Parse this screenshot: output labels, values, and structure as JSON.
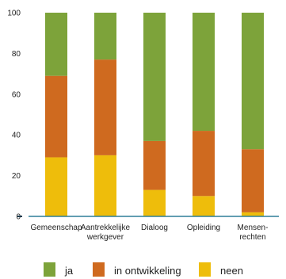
{
  "chart_data": {
    "type": "bar",
    "stacked": true,
    "categories": [
      [
        "Gemeenschap"
      ],
      [
        "Aantrekkelijke",
        "werkgever"
      ],
      [
        "Dialoog"
      ],
      [
        "Opleiding"
      ],
      [
        "Mensen-",
        "rechten"
      ]
    ],
    "series": [
      {
        "name": "neen",
        "color": "#eebd0b",
        "values": [
          29,
          30,
          13,
          10,
          2
        ]
      },
      {
        "name": "in ontwikkeling",
        "color": "#cf6a1f",
        "values": [
          40,
          47,
          24,
          32,
          31
        ]
      },
      {
        "name": "ja",
        "color": "#7da33a",
        "values": [
          31,
          23,
          63,
          58,
          67
        ]
      }
    ],
    "legend_order": [
      "ja",
      "in ontwikkeling",
      "neen"
    ],
    "ylim": [
      0,
      100
    ],
    "yticks": [
      "0",
      "20",
      "40",
      "60",
      "80",
      "100"
    ],
    "axis_color": "#2f7f99",
    "grid": false,
    "legend_position": "bottom"
  }
}
